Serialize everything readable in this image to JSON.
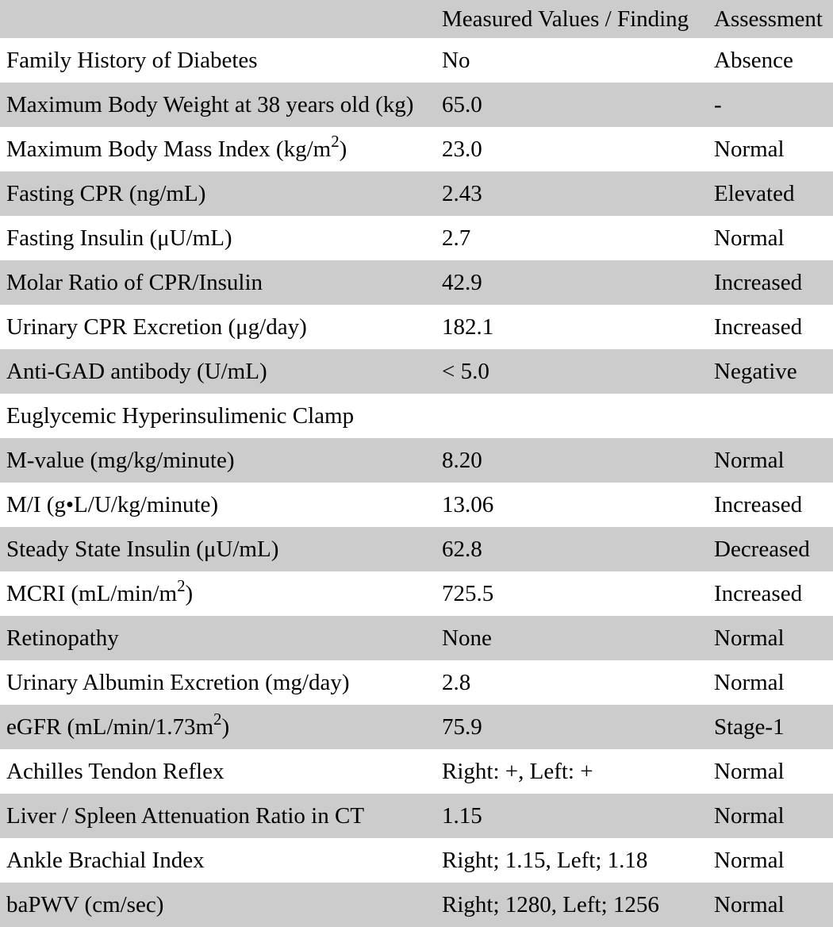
{
  "table": {
    "colors": {
      "row_alt_background": "#cccccc",
      "row_background": "#ffffff",
      "text": "#000000"
    },
    "header": [
      "",
      "Measured Values / Finding",
      "Assessment"
    ],
    "rows": [
      {
        "label_pre": "Family History of Diabetes",
        "sup": "",
        "label_post": "",
        "value": "No",
        "assessment": "Absence"
      },
      {
        "label_pre": "Maximum Body Weight at 38 years old (kg)",
        "sup": "",
        "label_post": "",
        "value": "65.0",
        "assessment": "-"
      },
      {
        "label_pre": "Maximum Body Mass Index (kg/m",
        "sup": "2",
        "label_post": ")",
        "value": "23.0",
        "assessment": "Normal"
      },
      {
        "label_pre": "Fasting CPR (ng/mL)",
        "sup": "",
        "label_post": "",
        "value": "2.43",
        "assessment": "Elevated"
      },
      {
        "label_pre": "Fasting Insulin (μU/mL)",
        "sup": "",
        "label_post": "",
        "value": "2.7",
        "assessment": "Normal"
      },
      {
        "label_pre": "Molar Ratio of CPR/Insulin",
        "sup": "",
        "label_post": "",
        "value": "42.9",
        "assessment": "Increased"
      },
      {
        "label_pre": "Urinary CPR Excretion (μg/day)",
        "sup": "",
        "label_post": "",
        "value": "182.1",
        "assessment": "Increased"
      },
      {
        "label_pre": "Anti-GAD antibody (U/mL)",
        "sup": "",
        "label_post": "",
        "value": "< 5.0",
        "assessment": "Negative"
      },
      {
        "label_pre": "Euglycemic Hyperinsulimenic Clamp",
        "sup": "",
        "label_post": "",
        "value": "",
        "assessment": ""
      },
      {
        "label_pre": "M-value (mg/kg/minute)",
        "sup": "",
        "label_post": "",
        "value": "8.20",
        "assessment": "Normal"
      },
      {
        "label_pre": "M/I (g•L/U/kg/minute)",
        "sup": "",
        "label_post": "",
        "value": "13.06",
        "assessment": "Increased"
      },
      {
        "label_pre": "Steady State Insulin (μU/mL)",
        "sup": "",
        "label_post": "",
        "value": "62.8",
        "assessment": "Decreased"
      },
      {
        "label_pre": "MCRI (mL/min/m",
        "sup": "2",
        "label_post": ")",
        "value": "725.5",
        "assessment": "Increased"
      },
      {
        "label_pre": "Retinopathy",
        "sup": "",
        "label_post": "",
        "value": "None",
        "assessment": "Normal"
      },
      {
        "label_pre": "Urinary Albumin Excretion (mg/day)",
        "sup": "",
        "label_post": "",
        "value": "2.8",
        "assessment": "Normal"
      },
      {
        "label_pre": "eGFR (mL/min/1.73m",
        "sup": "2",
        "label_post": ")",
        "value": "75.9",
        "assessment": "Stage-1"
      },
      {
        "label_pre": "Achilles Tendon Reflex",
        "sup": "",
        "label_post": "",
        "value": "Right: +, Left: +",
        "assessment": "Normal"
      },
      {
        "label_pre": "Liver / Spleen Attenuation Ratio in CT",
        "sup": "",
        "label_post": "",
        "value": "1.15",
        "assessment": "Normal"
      },
      {
        "label_pre": "Ankle Brachial Index",
        "sup": "",
        "label_post": "",
        "value": "Right; 1.15, Left; 1.18",
        "assessment": "Normal"
      },
      {
        "label_pre": "baPWV (cm/sec)",
        "sup": "",
        "label_post": "",
        "value": "Right; 1280, Left; 1256",
        "assessment": "Normal"
      }
    ]
  }
}
